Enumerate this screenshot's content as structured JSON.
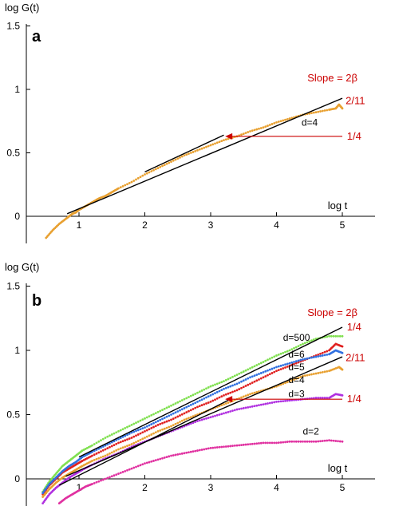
{
  "chart_data": [
    {
      "type": "scatter",
      "panel_label": "a",
      "ylabel": "log G(t)",
      "xlabel": "log t",
      "xlim": [
        0.2,
        5.35
      ],
      "ylim": [
        -0.2,
        1.5
      ],
      "x_ticks": [
        1,
        2,
        3,
        4,
        5
      ],
      "y_ticks": [
        0,
        0.5,
        1,
        1.5
      ],
      "x_tick_labels": [
        "1",
        "2",
        "3",
        "4",
        "5"
      ],
      "y_tick_labels": [
        "0",
        "0.5",
        "1",
        "1.5"
      ],
      "grid": false,
      "slope_label": "Slope = 2β",
      "series": [
        {
          "name": "d=4",
          "color": "#e8a030",
          "x": [
            0.5,
            0.6,
            0.7,
            0.8,
            0.85,
            0.9,
            0.95,
            1.0,
            1.1,
            1.2,
            1.3,
            1.4,
            1.5,
            1.6,
            1.8,
            2.0,
            2.2,
            2.4,
            2.6,
            2.8,
            3.0,
            3.2,
            3.4,
            3.6,
            3.8,
            4.0,
            4.2,
            4.4,
            4.6,
            4.8,
            4.9,
            4.95,
            5.0
          ],
          "y": [
            -0.17,
            -0.11,
            -0.06,
            -0.02,
            0.0,
            0.02,
            0.03,
            0.05,
            0.08,
            0.11,
            0.14,
            0.16,
            0.19,
            0.22,
            0.27,
            0.33,
            0.38,
            0.43,
            0.48,
            0.52,
            0.56,
            0.6,
            0.63,
            0.67,
            0.7,
            0.74,
            0.77,
            0.8,
            0.82,
            0.84,
            0.85,
            0.88,
            0.85
          ]
        }
      ],
      "reference_lines": [
        {
          "label": "2/11",
          "x": [
            0.82,
            5.0
          ],
          "y": [
            0.02,
            0.93
          ]
        },
        {
          "label": "1/4",
          "x": [
            2.0,
            3.2
          ],
          "y": [
            0.35,
            0.64
          ]
        }
      ],
      "arrows": [
        {
          "label": "1/4",
          "from": [
            5.0,
            0.63
          ],
          "to": [
            3.22,
            0.63
          ]
        }
      ],
      "annotations": [
        {
          "text": "2/11",
          "x": 5.05,
          "y": 0.91,
          "color": "#cc0000"
        },
        {
          "text": "1/4",
          "x": 5.07,
          "y": 0.63,
          "color": "#cc0000"
        },
        {
          "text": "d=4",
          "x": 4.38,
          "y": 0.74,
          "color": "#000000"
        }
      ]
    },
    {
      "type": "scatter",
      "panel_label": "b",
      "ylabel": "log G(t)",
      "xlabel": "log t",
      "xlim": [
        0.2,
        5.35
      ],
      "ylim": [
        -0.2,
        1.5
      ],
      "x_ticks": [
        1,
        2,
        3,
        4,
        5
      ],
      "y_ticks": [
        0,
        0.5,
        1,
        1.5
      ],
      "x_tick_labels": [
        "1",
        "2",
        "3",
        "4",
        "5"
      ],
      "y_tick_labels": [
        "0",
        "0.5",
        "1",
        "1.5"
      ],
      "grid": false,
      "slope_label": "Slope = 2β",
      "series": [
        {
          "name": "d=500",
          "color": "#80e050",
          "x": [
            0.45,
            0.55,
            0.65,
            0.75,
            0.85,
            0.95,
            1.05,
            1.2,
            1.4,
            1.6,
            1.8,
            2.0,
            2.2,
            2.4,
            2.6,
            2.8,
            3.0,
            3.2,
            3.4,
            3.6,
            3.8,
            4.0,
            4.2,
            4.4,
            4.6,
            4.8,
            5.0
          ],
          "y": [
            -0.1,
            -0.02,
            0.04,
            0.1,
            0.14,
            0.18,
            0.22,
            0.26,
            0.32,
            0.37,
            0.42,
            0.47,
            0.52,
            0.57,
            0.62,
            0.67,
            0.72,
            0.76,
            0.81,
            0.86,
            0.91,
            0.96,
            1.0,
            1.05,
            1.09,
            1.11,
            1.11
          ]
        },
        {
          "name": "d=6",
          "color": "#e02020",
          "x": [
            0.45,
            0.55,
            0.65,
            0.75,
            0.85,
            0.95,
            1.05,
            1.2,
            1.4,
            1.6,
            1.8,
            2.0,
            2.2,
            2.4,
            2.6,
            2.8,
            3.0,
            3.2,
            3.4,
            3.6,
            3.8,
            4.0,
            4.2,
            4.4,
            4.6,
            4.8,
            4.9,
            5.0
          ],
          "y": [
            -0.12,
            -0.05,
            0.0,
            0.05,
            0.08,
            0.11,
            0.14,
            0.18,
            0.23,
            0.28,
            0.32,
            0.37,
            0.42,
            0.46,
            0.51,
            0.56,
            0.6,
            0.65,
            0.69,
            0.74,
            0.79,
            0.84,
            0.88,
            0.92,
            0.96,
            1.0,
            1.05,
            1.03
          ]
        },
        {
          "name": "d=5",
          "color": "#3070e0",
          "x": [
            0.45,
            0.55,
            0.65,
            0.75,
            0.85,
            0.95,
            1.05,
            1.2,
            1.4,
            1.6,
            1.8,
            2.0,
            2.2,
            2.4,
            2.6,
            2.8,
            3.0,
            3.2,
            3.4,
            3.6,
            3.8,
            4.0,
            4.2,
            4.4,
            4.6,
            4.8,
            4.9,
            5.0
          ],
          "y": [
            -0.11,
            -0.04,
            0.01,
            0.06,
            0.1,
            0.13,
            0.17,
            0.21,
            0.26,
            0.31,
            0.36,
            0.4,
            0.45,
            0.5,
            0.55,
            0.6,
            0.65,
            0.7,
            0.74,
            0.79,
            0.83,
            0.87,
            0.9,
            0.93,
            0.95,
            0.97,
            1.0,
            0.98
          ]
        },
        {
          "name": "d=4",
          "color": "#e8a030",
          "x": [
            0.45,
            0.55,
            0.65,
            0.75,
            0.85,
            0.95,
            1.05,
            1.2,
            1.4,
            1.6,
            1.8,
            2.0,
            2.2,
            2.4,
            2.6,
            2.8,
            3.0,
            3.2,
            3.4,
            3.6,
            3.8,
            4.0,
            4.2,
            4.4,
            4.6,
            4.8,
            4.95,
            5.0
          ],
          "y": [
            -0.14,
            -0.08,
            -0.03,
            0.01,
            0.04,
            0.07,
            0.1,
            0.14,
            0.18,
            0.23,
            0.27,
            0.32,
            0.37,
            0.41,
            0.46,
            0.5,
            0.54,
            0.58,
            0.62,
            0.66,
            0.69,
            0.72,
            0.76,
            0.8,
            0.82,
            0.84,
            0.87,
            0.85
          ]
        },
        {
          "name": "d=3",
          "color": "#b030e0",
          "x": [
            0.45,
            0.55,
            0.65,
            0.75,
            0.85,
            0.95,
            1.05,
            1.2,
            1.4,
            1.6,
            1.8,
            2.0,
            2.2,
            2.4,
            2.6,
            2.8,
            3.0,
            3.2,
            3.4,
            3.6,
            3.8,
            4.0,
            4.2,
            4.4,
            4.6,
            4.8,
            4.9,
            5.0
          ],
          "y": [
            -0.19,
            -0.12,
            -0.07,
            -0.03,
            0.01,
            0.04,
            0.07,
            0.11,
            0.16,
            0.2,
            0.25,
            0.29,
            0.33,
            0.37,
            0.41,
            0.45,
            0.48,
            0.51,
            0.54,
            0.56,
            0.58,
            0.6,
            0.61,
            0.62,
            0.63,
            0.63,
            0.66,
            0.65
          ]
        },
        {
          "name": "d=2",
          "color": "#e030a0",
          "x": [
            0.7,
            0.8,
            0.9,
            1.0,
            1.1,
            1.2,
            1.4,
            1.6,
            1.8,
            2.0,
            2.2,
            2.4,
            2.6,
            2.8,
            3.0,
            3.2,
            3.4,
            3.6,
            3.8,
            4.0,
            4.2,
            4.4,
            4.6,
            4.8,
            5.0
          ],
          "y": [
            -0.19,
            -0.15,
            -0.12,
            -0.09,
            -0.06,
            -0.04,
            0.0,
            0.04,
            0.08,
            0.12,
            0.15,
            0.18,
            0.2,
            0.22,
            0.24,
            0.25,
            0.26,
            0.27,
            0.28,
            0.28,
            0.29,
            0.29,
            0.29,
            0.3,
            0.29
          ]
        }
      ],
      "reference_lines": [
        {
          "label": "1/4",
          "x": [
            1.0,
            5.0
          ],
          "y": [
            0.17,
            1.18
          ]
        },
        {
          "label": "2/11",
          "x": [
            0.8,
            5.0
          ],
          "y": [
            0.02,
            0.95
          ]
        },
        {
          "label": "1/4",
          "x": [
            0.7,
            3.3
          ],
          "y": [
            -0.05,
            0.62
          ]
        }
      ],
      "arrows": [
        {
          "label": "1/4",
          "from": [
            5.0,
            0.62
          ],
          "to": [
            3.22,
            0.62
          ]
        }
      ],
      "annotations": [
        {
          "text": "1/4",
          "x": 5.07,
          "y": 1.18,
          "color": "#cc0000"
        },
        {
          "text": "2/11",
          "x": 5.05,
          "y": 0.94,
          "color": "#cc0000"
        },
        {
          "text": "1/4",
          "x": 5.07,
          "y": 0.62,
          "color": "#cc0000"
        },
        {
          "text": "d=500",
          "x": 4.1,
          "y": 1.1,
          "color": "#000000"
        },
        {
          "text": "d=6",
          "x": 4.18,
          "y": 0.97,
          "color": "#000000"
        },
        {
          "text": "d=5",
          "x": 4.18,
          "y": 0.87,
          "color": "#000000"
        },
        {
          "text": "d=4",
          "x": 4.18,
          "y": 0.77,
          "color": "#000000"
        },
        {
          "text": "d=3",
          "x": 4.18,
          "y": 0.66,
          "color": "#000000"
        },
        {
          "text": "d=2",
          "x": 4.4,
          "y": 0.37,
          "color": "#000000"
        }
      ]
    }
  ]
}
